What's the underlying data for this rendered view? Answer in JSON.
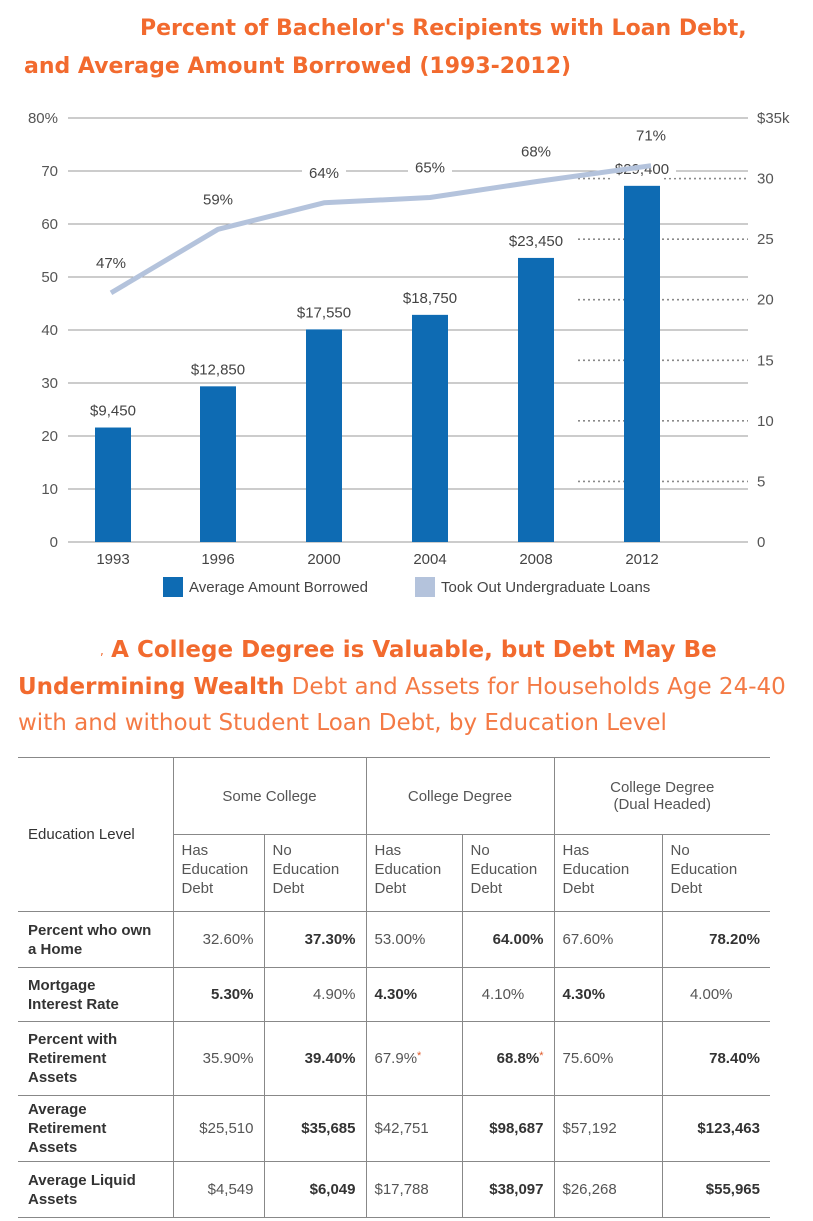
{
  "title": {
    "line1": "Percent of Bachelor's Recipients with Loan Debt,",
    "line2": "and Average Amount Borrowed (1993-2012)"
  },
  "colors": {
    "bar": "#0e6bb3",
    "line": "#b4c3dc",
    "accent": "#f26a2e"
  },
  "chart_data": {
    "type": "bar",
    "categories": [
      "1993",
      "1996",
      "2000",
      "2004",
      "2008",
      "2012"
    ],
    "series": [
      {
        "name": "Average Amount Borrowed",
        "kind": "bar",
        "axis": "right",
        "values": [
          9450,
          12850,
          17550,
          18750,
          23450,
          29400
        ],
        "labels": [
          "$9,450",
          "$12,850",
          "$17,550",
          "$18,750",
          "$23,450",
          "$29,400"
        ]
      },
      {
        "name": "Took Out Undergraduate Loans",
        "kind": "line",
        "axis": "left",
        "values": [
          47,
          59,
          64,
          65,
          68,
          71
        ],
        "labels": [
          "47%",
          "59%",
          "64%",
          "65%",
          "68%",
          "71%"
        ]
      }
    ],
    "left_axis": {
      "min": 0,
      "max": 80,
      "ticks": [
        {
          "v": 0,
          "t": "0"
        },
        {
          "v": 10,
          "t": "10"
        },
        {
          "v": 20,
          "t": "20"
        },
        {
          "v": 30,
          "t": "30"
        },
        {
          "v": 40,
          "t": "40"
        },
        {
          "v": 50,
          "t": "50"
        },
        {
          "v": 60,
          "t": "60"
        },
        {
          "v": 70,
          "t": "70"
        },
        {
          "v": 80,
          "t": "80%"
        }
      ]
    },
    "right_axis": {
      "min": 0,
      "max": 35,
      "ticks": [
        {
          "v": 0,
          "t": "0"
        },
        {
          "v": 5,
          "t": "5"
        },
        {
          "v": 10,
          "t": "10"
        },
        {
          "v": 15,
          "t": "15"
        },
        {
          "v": 20,
          "t": "20"
        },
        {
          "v": 25,
          "t": "25"
        },
        {
          "v": 30,
          "t": "30"
        },
        {
          "v": 35,
          "t": "$35k"
        }
      ]
    },
    "legend_position": "bottom"
  },
  "section2": {
    "bold_title": "A College Degree is Valuable, but Debt May Be Undermining Wealth",
    "bold_title_line1": "A College Degree is Valuable, but Debt May Be",
    "bold_title_line2": "Undermining Wealth",
    "subtitle_line1": "Debt and Assets for Households Age 24-40",
    "subtitle_line2": "with and without Student Loan Debt, by Education Level"
  },
  "table": {
    "row_header": "Education Level",
    "groups": [
      "Some College",
      "College Degree",
      "College Degree (Dual Headed)"
    ],
    "group3_line1": "College Degree",
    "group3_line2": "(Dual Headed)",
    "sub": {
      "has": [
        "Has",
        "Education",
        "Debt"
      ],
      "no": [
        "No",
        "Education",
        "Debt"
      ]
    },
    "rows": [
      {
        "label": "Percent who own a Home",
        "l1": "Percent who own",
        "l2": "a Home",
        "values": [
          "32.60%",
          "37.30%",
          "53.00%",
          "64.00%",
          "67.60%",
          "78.20%"
        ]
      },
      {
        "label": "Mortgage Interest Rate",
        "l1": "Mortgage",
        "l2": "Interest Rate",
        "values": [
          "5.30%",
          "4.90%",
          "4.30%",
          "4.10%",
          "4.30%",
          "4.00%"
        ]
      },
      {
        "label": "Percent with Retirement Assets",
        "l1": "Percent with",
        "l2": "Retirement",
        "l3": "Assets",
        "values": [
          "35.90%",
          "39.40%",
          "67.9%",
          "68.8%",
          "75.60%",
          "78.40%"
        ],
        "asterisk": "*"
      },
      {
        "label": "Average Retirement Assets",
        "l1": "Average",
        "l2": "Retirement",
        "l3": "Assets",
        "values": [
          "$25,510",
          "$35,685",
          "$42,751",
          "$98,687",
          "$57,192",
          "$123,463"
        ]
      },
      {
        "label": "Average Liquid Assets",
        "l1": "Average Liquid",
        "l2": "Assets",
        "values": [
          "$4,549",
          "$6,049",
          "$17,788",
          "$38,097",
          "$26,268",
          "$55,965"
        ]
      }
    ]
  }
}
